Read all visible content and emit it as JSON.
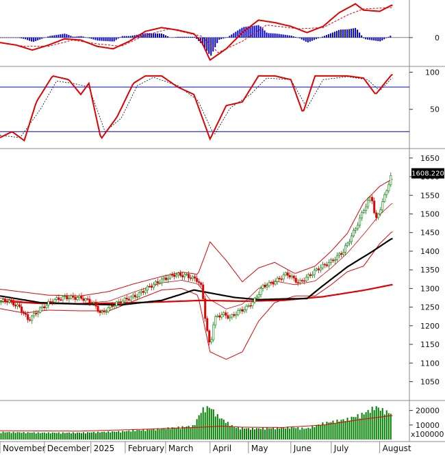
{
  "chart_data": [
    {
      "type": "line",
      "panel": "macd",
      "y_ticks": [
        0
      ],
      "ylim": [
        -22,
        29
      ],
      "series": [],
      "macd_line": [
        [
          0,
          -4
        ],
        [
          0.04,
          -6
        ],
        [
          0.08,
          -10
        ],
        [
          0.12,
          -6
        ],
        [
          0.16,
          -1
        ],
        [
          0.2,
          -2
        ],
        [
          0.24,
          -7
        ],
        [
          0.28,
          -9
        ],
        [
          0.32,
          -3
        ],
        [
          0.36,
          5
        ],
        [
          0.4,
          8
        ],
        [
          0.44,
          6
        ],
        [
          0.48,
          3
        ],
        [
          0.5,
          -4
        ],
        [
          0.52,
          -18
        ],
        [
          0.56,
          -9
        ],
        [
          0.6,
          4
        ],
        [
          0.64,
          14
        ],
        [
          0.68,
          12
        ],
        [
          0.72,
          9
        ],
        [
          0.76,
          4
        ],
        [
          0.8,
          9
        ],
        [
          0.84,
          20
        ],
        [
          0.88,
          27
        ],
        [
          0.9,
          22
        ],
        [
          0.94,
          21
        ],
        [
          0.97,
          26
        ]
      ],
      "signal_line": [
        [
          0,
          -4
        ],
        [
          0.06,
          -7
        ],
        [
          0.12,
          -7
        ],
        [
          0.18,
          -2
        ],
        [
          0.24,
          -5
        ],
        [
          0.3,
          -7
        ],
        [
          0.36,
          2
        ],
        [
          0.42,
          7
        ],
        [
          0.5,
          1
        ],
        [
          0.54,
          -12
        ],
        [
          0.6,
          -3
        ],
        [
          0.66,
          10
        ],
        [
          0.74,
          7
        ],
        [
          0.8,
          8
        ],
        [
          0.86,
          18
        ],
        [
          0.9,
          23
        ],
        [
          0.97,
          24
        ]
      ]
    },
    {
      "type": "line",
      "panel": "stochastic",
      "y_ticks": [
        100,
        50
      ],
      "ylim": [
        0,
        105
      ],
      "reference_levels": [
        80,
        20
      ],
      "k_line": [
        [
          0,
          12
        ],
        [
          0.03,
          20
        ],
        [
          0.06,
          8
        ],
        [
          0.09,
          60
        ],
        [
          0.13,
          95
        ],
        [
          0.17,
          90
        ],
        [
          0.2,
          70
        ],
        [
          0.22,
          85
        ],
        [
          0.25,
          10
        ],
        [
          0.29,
          40
        ],
        [
          0.33,
          85
        ],
        [
          0.36,
          95
        ],
        [
          0.4,
          95
        ],
        [
          0.44,
          80
        ],
        [
          0.48,
          70
        ],
        [
          0.52,
          10
        ],
        [
          0.56,
          55
        ],
        [
          0.6,
          60
        ],
        [
          0.64,
          95
        ],
        [
          0.68,
          95
        ],
        [
          0.72,
          90
        ],
        [
          0.75,
          45
        ],
        [
          0.78,
          95
        ],
        [
          0.82,
          95
        ],
        [
          0.86,
          95
        ],
        [
          0.9,
          92
        ],
        [
          0.93,
          70
        ],
        [
          0.97,
          97
        ]
      ],
      "d_line": [
        [
          0,
          15
        ],
        [
          0.05,
          12
        ],
        [
          0.1,
          50
        ],
        [
          0.14,
          88
        ],
        [
          0.18,
          85
        ],
        [
          0.22,
          80
        ],
        [
          0.26,
          20
        ],
        [
          0.3,
          38
        ],
        [
          0.34,
          82
        ],
        [
          0.38,
          93
        ],
        [
          0.44,
          82
        ],
        [
          0.49,
          62
        ],
        [
          0.53,
          15
        ],
        [
          0.57,
          52
        ],
        [
          0.62,
          70
        ],
        [
          0.66,
          92
        ],
        [
          0.72,
          90
        ],
        [
          0.76,
          52
        ],
        [
          0.8,
          90
        ],
        [
          0.86,
          94
        ],
        [
          0.91,
          90
        ],
        [
          0.94,
          75
        ],
        [
          0.97,
          92
        ]
      ]
    },
    {
      "type": "candlestick",
      "panel": "price",
      "y_ticks": [
        1650,
        1600,
        1550,
        1500,
        1450,
        1400,
        1350,
        1300,
        1250,
        1200,
        1150,
        1100,
        1050
      ],
      "ylim": [
        1005,
        1668
      ],
      "last_price_label": "1608.220",
      "ma_black": [
        [
          0,
          1280
        ],
        [
          0.1,
          1262
        ],
        [
          0.2,
          1258
        ],
        [
          0.3,
          1256
        ],
        [
          0.4,
          1268
        ],
        [
          0.45,
          1285
        ],
        [
          0.48,
          1296
        ],
        [
          0.52,
          1288
        ],
        [
          0.58,
          1276
        ],
        [
          0.64,
          1270
        ],
        [
          0.7,
          1272
        ],
        [
          0.76,
          1273
        ],
        [
          0.8,
          1308
        ],
        [
          0.86,
          1358
        ],
        [
          0.92,
          1398
        ],
        [
          0.97,
          1434
        ]
      ],
      "ma_red": [
        [
          0,
          1266
        ],
        [
          0.1,
          1260
        ],
        [
          0.2,
          1259
        ],
        [
          0.3,
          1261
        ],
        [
          0.4,
          1264
        ],
        [
          0.5,
          1268
        ],
        [
          0.6,
          1266
        ],
        [
          0.7,
          1268
        ],
        [
          0.8,
          1278
        ],
        [
          0.9,
          1295
        ],
        [
          0.97,
          1310
        ]
      ],
      "bb_upper": [
        [
          0,
          1298
        ],
        [
          0.06,
          1290
        ],
        [
          0.12,
          1282
        ],
        [
          0.2,
          1280
        ],
        [
          0.27,
          1292
        ],
        [
          0.33,
          1312
        ],
        [
          0.4,
          1332
        ],
        [
          0.45,
          1344
        ],
        [
          0.49,
          1338
        ],
        [
          0.52,
          1425
        ],
        [
          0.56,
          1375
        ],
        [
          0.6,
          1318
        ],
        [
          0.64,
          1355
        ],
        [
          0.68,
          1370
        ],
        [
          0.73,
          1340
        ],
        [
          0.78,
          1360
        ],
        [
          0.82,
          1400
        ],
        [
          0.86,
          1448
        ],
        [
          0.9,
          1530
        ],
        [
          0.94,
          1574
        ],
        [
          0.97,
          1593
        ]
      ],
      "bb_mid": [
        [
          0,
          1274
        ],
        [
          0.06,
          1264
        ],
        [
          0.12,
          1262
        ],
        [
          0.2,
          1260
        ],
        [
          0.27,
          1266
        ],
        [
          0.33,
          1290
        ],
        [
          0.4,
          1315
        ],
        [
          0.45,
          1322
        ],
        [
          0.49,
          1312
        ],
        [
          0.52,
          1270
        ],
        [
          0.56,
          1245
        ],
        [
          0.6,
          1258
        ],
        [
          0.64,
          1300
        ],
        [
          0.68,
          1320
        ],
        [
          0.73,
          1310
        ],
        [
          0.78,
          1320
        ],
        [
          0.82,
          1355
        ],
        [
          0.86,
          1395
        ],
        [
          0.9,
          1445
        ],
        [
          0.94,
          1498
        ],
        [
          0.97,
          1528
        ]
      ],
      "bb_lower": [
        [
          0,
          1246
        ],
        [
          0.06,
          1234
        ],
        [
          0.12,
          1242
        ],
        [
          0.2,
          1240
        ],
        [
          0.27,
          1240
        ],
        [
          0.33,
          1266
        ],
        [
          0.4,
          1296
        ],
        [
          0.45,
          1300
        ],
        [
          0.49,
          1282
        ],
        [
          0.52,
          1130
        ],
        [
          0.56,
          1110
        ],
        [
          0.6,
          1130
        ],
        [
          0.64,
          1212
        ],
        [
          0.68,
          1262
        ],
        [
          0.73,
          1280
        ],
        [
          0.78,
          1280
        ],
        [
          0.82,
          1310
        ],
        [
          0.86,
          1345
        ],
        [
          0.9,
          1360
        ],
        [
          0.94,
          1420
        ],
        [
          0.97,
          1452
        ]
      ],
      "close_path": [
        [
          0,
          1265
        ],
        [
          0.02,
          1268
        ],
        [
          0.05,
          1248
        ],
        [
          0.07,
          1215
        ],
        [
          0.1,
          1245
        ],
        [
          0.13,
          1268
        ],
        [
          0.16,
          1276
        ],
        [
          0.2,
          1275
        ],
        [
          0.23,
          1262
        ],
        [
          0.25,
          1232
        ],
        [
          0.28,
          1256
        ],
        [
          0.31,
          1270
        ],
        [
          0.34,
          1282
        ],
        [
          0.37,
          1305
        ],
        [
          0.4,
          1322
        ],
        [
          0.43,
          1337
        ],
        [
          0.46,
          1335
        ],
        [
          0.49,
          1322
        ],
        [
          0.5,
          1300
        ],
        [
          0.51,
          1205
        ],
        [
          0.52,
          1140
        ],
        [
          0.53,
          1218
        ],
        [
          0.55,
          1232
        ],
        [
          0.57,
          1222
        ],
        [
          0.59,
          1238
        ],
        [
          0.61,
          1248
        ],
        [
          0.63,
          1268
        ],
        [
          0.65,
          1305
        ],
        [
          0.68,
          1318
        ],
        [
          0.71,
          1340
        ],
        [
          0.74,
          1315
        ],
        [
          0.76,
          1330
        ],
        [
          0.79,
          1355
        ],
        [
          0.82,
          1372
        ],
        [
          0.85,
          1400
        ],
        [
          0.88,
          1460
        ],
        [
          0.9,
          1510
        ],
        [
          0.92,
          1550
        ],
        [
          0.93,
          1480
        ],
        [
          0.95,
          1540
        ],
        [
          0.97,
          1608
        ]
      ]
    },
    {
      "type": "bar",
      "panel": "volume",
      "y_ticks": [
        20000,
        10000
      ],
      "unit_label": "x100000",
      "ylim": [
        0,
        25000
      ],
      "volume_ma": [
        [
          0,
          6000
        ],
        [
          0.2,
          5800
        ],
        [
          0.35,
          7000
        ],
        [
          0.5,
          8500
        ],
        [
          0.55,
          9200
        ],
        [
          0.6,
          8500
        ],
        [
          0.7,
          8300
        ],
        [
          0.8,
          10000
        ],
        [
          0.9,
          14000
        ],
        [
          0.97,
          16500
        ]
      ],
      "volume_profile": [
        [
          0,
          5500
        ],
        [
          0.1,
          5000
        ],
        [
          0.2,
          5000
        ],
        [
          0.3,
          6000
        ],
        [
          0.4,
          8000
        ],
        [
          0.48,
          10000
        ],
        [
          0.5,
          22000
        ],
        [
          0.52,
          24000
        ],
        [
          0.54,
          17000
        ],
        [
          0.58,
          9000
        ],
        [
          0.62,
          8000
        ],
        [
          0.68,
          8500
        ],
        [
          0.72,
          9000
        ],
        [
          0.76,
          8000
        ],
        [
          0.8,
          12000
        ],
        [
          0.86,
          15000
        ],
        [
          0.9,
          19000
        ],
        [
          0.93,
          24000
        ],
        [
          0.96,
          20000
        ],
        [
          0.98,
          18000
        ]
      ],
      "categories": [
        "November",
        "December",
        "2025",
        "February",
        "March",
        "April",
        "May",
        "June",
        "July",
        "August"
      ]
    }
  ],
  "colors": {
    "red": "#e00000",
    "black": "#000000",
    "green": "#008000",
    "blue": "#0000cc",
    "grid": "#888888"
  }
}
